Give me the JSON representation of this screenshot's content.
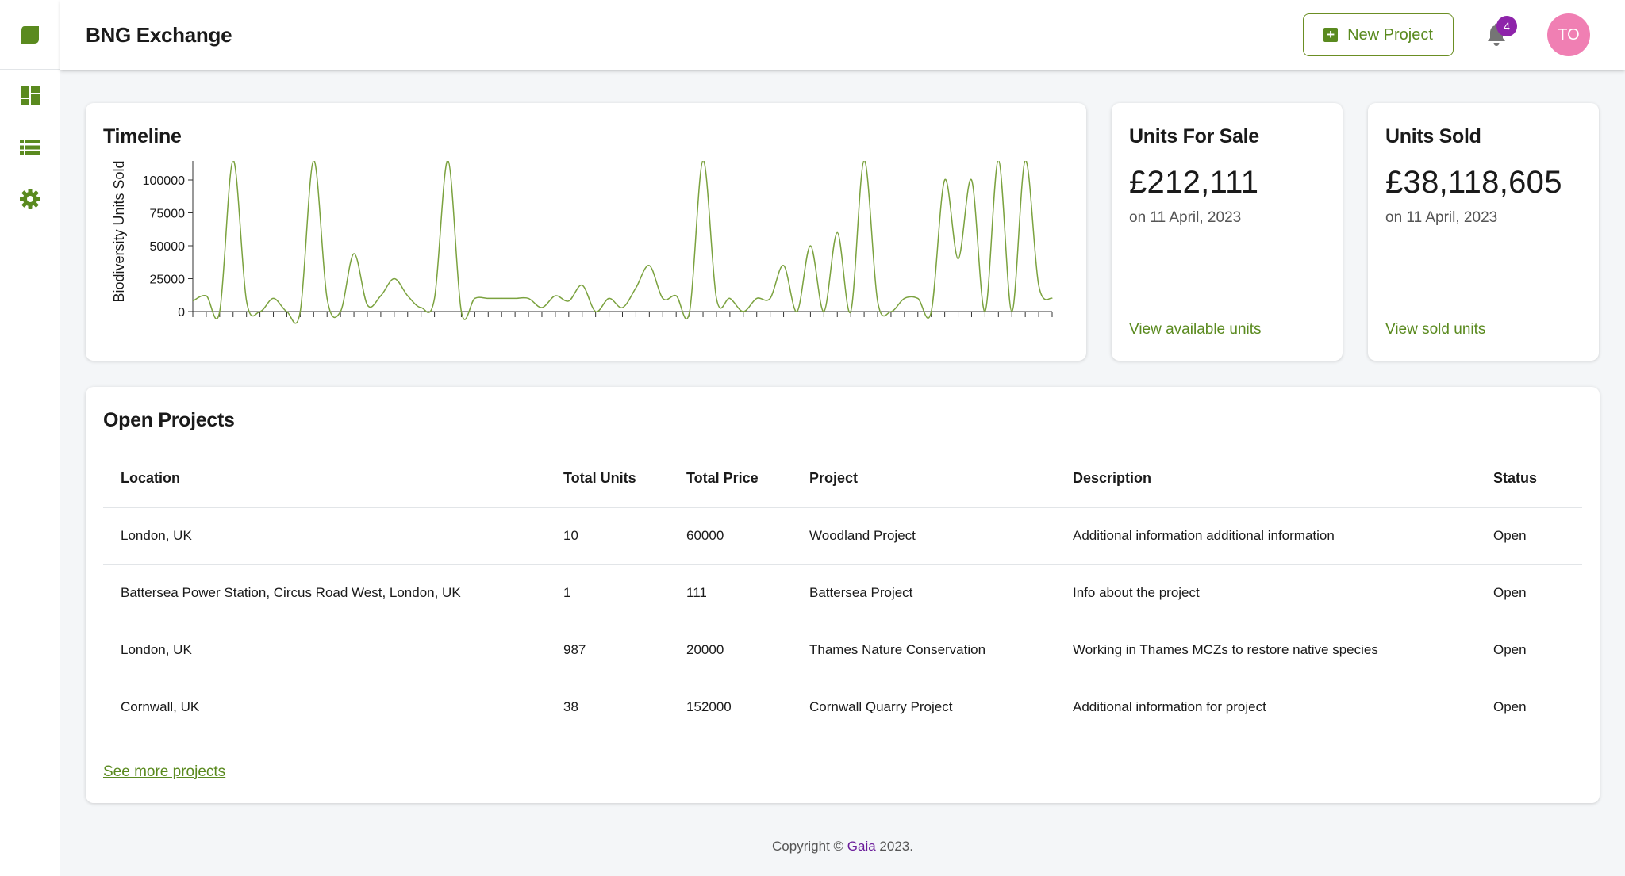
{
  "app": {
    "title": "BNG Exchange",
    "accent_color": "#5a8a1f",
    "logo_icon": "leaf-icon"
  },
  "sidebar": {
    "items": [
      {
        "icon": "dashboard-icon"
      },
      {
        "icon": "list-icon"
      },
      {
        "icon": "gear-icon"
      }
    ]
  },
  "header": {
    "new_project_label": "New Project",
    "notification_count": "4",
    "avatar_initials": "TO",
    "avatar_color": "#f07fb3"
  },
  "timeline": {
    "title": "Timeline"
  },
  "chart_data": {
    "type": "line",
    "title": "Timeline",
    "xlabel": "",
    "ylabel": "Biodiversity Units Sold",
    "ylim": [
      0,
      100000
    ],
    "yticks": [
      "100000",
      "75000",
      "50000",
      "25000",
      "0"
    ],
    "grid": false,
    "line_color": "#7ba23f",
    "series": [
      {
        "values": [
          8000,
          12000,
          0,
          115000,
          8000,
          0,
          10000,
          0,
          0,
          115000,
          10000,
          0,
          44000,
          5000,
          12000,
          25000,
          12000,
          3000,
          10000,
          115000,
          0,
          10000,
          10000,
          10000,
          10000,
          10000,
          3000,
          12000,
          8000,
          20000,
          0,
          10000,
          3000,
          18000,
          35000,
          10000,
          12000,
          0,
          115000,
          10000,
          10000,
          0,
          10000,
          10000,
          35000,
          0,
          50000,
          0,
          60000,
          0,
          115000,
          8000,
          0,
          10000,
          10000,
          0,
          100000,
          40000,
          100000,
          0,
          115000,
          0,
          115000,
          20000,
          10000
        ]
      }
    ]
  },
  "units_for_sale": {
    "title": "Units For Sale",
    "value": "£212,111",
    "date": "on 11 April, 2023",
    "link": "View available units"
  },
  "units_sold": {
    "title": "Units Sold",
    "value": "£38,118,605",
    "date": "on 11 April, 2023",
    "link": "View sold units"
  },
  "projects": {
    "title": "Open Projects",
    "columns": [
      "Location",
      "Total Units",
      "Total Price",
      "Project",
      "Description",
      "Status"
    ],
    "rows": [
      [
        "London, UK",
        "10",
        "60000",
        "Woodland Project",
        "Additional information additional information",
        "Open"
      ],
      [
        "Battersea Power Station, Circus Road West, London, UK",
        "1",
        "111",
        "Battersea Project",
        "Info about the project",
        "Open"
      ],
      [
        "London, UK",
        "987",
        "20000",
        "Thames Nature Conservation",
        "Working in Thames MCZs to restore native species",
        "Open"
      ],
      [
        "Cornwall, UK",
        "38",
        "152000",
        "Cornwall Quarry Project",
        "Additional information for project",
        "Open"
      ]
    ],
    "see_more": "See more projects"
  },
  "footer": {
    "prefix": "Copyright © ",
    "brand": "Gaia",
    "suffix": " 2023."
  }
}
